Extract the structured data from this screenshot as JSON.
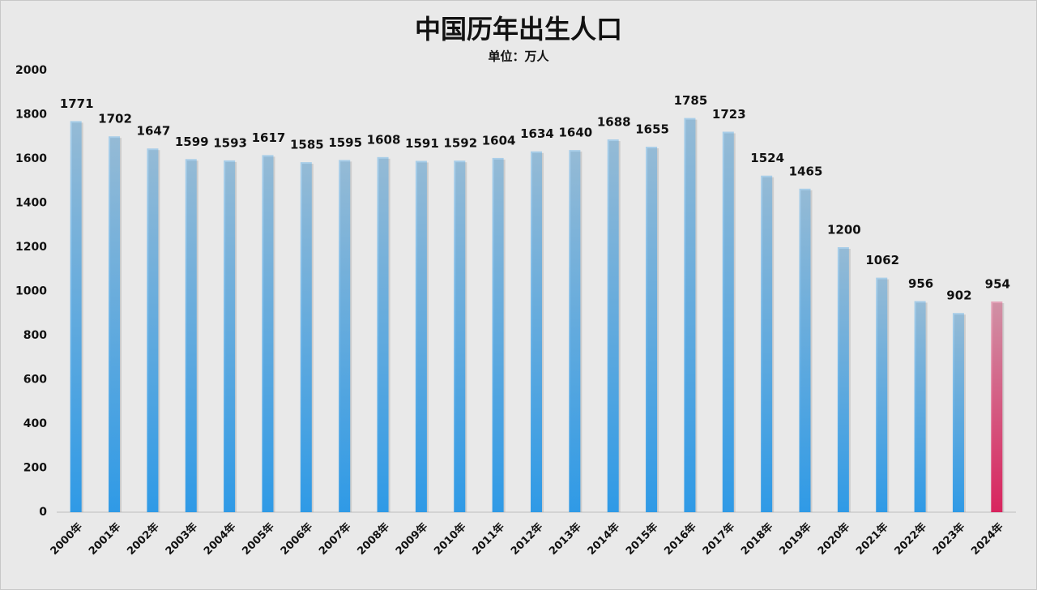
{
  "chart_data": {
    "type": "bar",
    "title": "中国历年出生人口",
    "subtitle": "单位：万人",
    "categories": [
      "2000年",
      "2001年",
      "2002年",
      "2003年",
      "2004年",
      "2005年",
      "2006年",
      "2007年",
      "2008年",
      "2009年",
      "2010年",
      "2011年",
      "2012年",
      "2013年",
      "2014年",
      "2015年",
      "2016年",
      "2017年",
      "2018年",
      "2019年",
      "2020年",
      "2021年",
      "2022年",
      "2023年",
      "2024年"
    ],
    "values": [
      1771,
      1702,
      1647,
      1599,
      1593,
      1617,
      1585,
      1595,
      1608,
      1591,
      1592,
      1604,
      1634,
      1640,
      1688,
      1655,
      1785,
      1723,
      1524,
      1465,
      1200,
      1062,
      956,
      902,
      954
    ],
    "colors": [
      "#2f9ae6",
      "#2f9ae6",
      "#2f9ae6",
      "#2f9ae6",
      "#2f9ae6",
      "#2f9ae6",
      "#2f9ae6",
      "#2f9ae6",
      "#2f9ae6",
      "#2f9ae6",
      "#2f9ae6",
      "#2f9ae6",
      "#2f9ae6",
      "#2f9ae6",
      "#2f9ae6",
      "#2f9ae6",
      "#2f9ae6",
      "#2f9ae6",
      "#2f9ae6",
      "#2f9ae6",
      "#2f9ae6",
      "#2f9ae6",
      "#2f9ae6",
      "#2f9ae6",
      "#d8245e"
    ],
    "ylim": [
      0,
      2000
    ],
    "yticks": [
      0,
      200,
      400,
      600,
      800,
      1000,
      1200,
      1400,
      1600,
      1800,
      2000
    ],
    "grid": false
  }
}
